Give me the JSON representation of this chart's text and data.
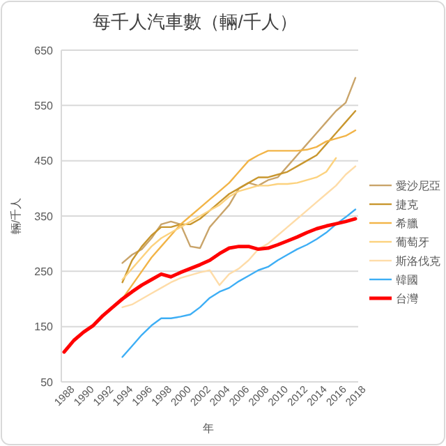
{
  "chart_data": {
    "type": "line",
    "title": "每千人汽車數（輛/千人）",
    "xlabel": "年",
    "ylabel": "輛/千人",
    "categories": [
      "1988",
      null,
      "1990",
      null,
      "1992",
      null,
      "1994",
      null,
      "1996",
      null,
      "1998",
      null,
      "2000",
      null,
      "2002",
      null,
      "2004",
      null,
      "2006",
      null,
      "2008",
      null,
      "2010",
      null,
      "2012",
      null,
      "2014",
      null,
      "2016",
      null,
      "2018"
    ],
    "ylim": [
      50,
      650
    ],
    "yticks": [
      50,
      150,
      250,
      350,
      450,
      550,
      650
    ],
    "grid": "y",
    "legend": "right",
    "series": [
      {
        "name": "愛沙尼亞",
        "color": "#c9a46a",
        "values": [
          null,
          null,
          null,
          null,
          null,
          null,
          265,
          280,
          290,
          310,
          335,
          340,
          335,
          295,
          292,
          330,
          350,
          370,
          400,
          410,
          405,
          415,
          420,
          440,
          460,
          480,
          500,
          520,
          540,
          555,
          600
        ]
      },
      {
        "name": "捷克",
        "color": "#c8962e",
        "values": [
          null,
          null,
          null,
          null,
          null,
          null,
          230,
          270,
          295,
          315,
          330,
          330,
          335,
          335,
          345,
          360,
          375,
          390,
          400,
          410,
          420,
          420,
          425,
          430,
          440,
          450,
          460,
          480,
          500,
          520,
          540
        ]
      },
      {
        "name": "希臘",
        "color": "#f2b447",
        "values": [
          null,
          null,
          null,
          null,
          null,
          null,
          200,
          225,
          250,
          275,
          295,
          315,
          335,
          350,
          365,
          380,
          395,
          410,
          430,
          450,
          460,
          468,
          468,
          468,
          468,
          470,
          475,
          485,
          490,
          495,
          505
        ]
      },
      {
        "name": "葡萄牙",
        "color": "#fcd27e",
        "values": [
          null,
          null,
          null,
          null,
          null,
          null,
          235,
          255,
          275,
          295,
          310,
          320,
          330,
          340,
          350,
          360,
          370,
          385,
          395,
          400,
          405,
          405,
          408,
          408,
          410,
          415,
          420,
          430,
          455,
          null,
          null
        ]
      },
      {
        "name": "斯洛伐克",
        "color": "#fedca8",
        "values": [
          null,
          null,
          null,
          null,
          null,
          null,
          185,
          190,
          200,
          210,
          220,
          230,
          238,
          243,
          248,
          252,
          225,
          245,
          255,
          270,
          290,
          300,
          315,
          330,
          345,
          360,
          375,
          390,
          405,
          425,
          440
        ]
      },
      {
        "name": "韓國",
        "color": "#3daef5",
        "values": [
          null,
          null,
          null,
          null,
          null,
          null,
          95,
          115,
          135,
          152,
          165,
          165,
          168,
          172,
          185,
          202,
          213,
          220,
          232,
          242,
          252,
          258,
          270,
          280,
          290,
          298,
          308,
          320,
          335,
          348,
          362
        ]
      },
      {
        "name": "台灣",
        "color": "#ff0000",
        "values": [
          104,
          125,
          140,
          152,
          170,
          185,
          200,
          213,
          225,
          235,
          245,
          240,
          248,
          255,
          262,
          270,
          282,
          292,
          295,
          295,
          290,
          292,
          298,
          305,
          312,
          320,
          327,
          332,
          336,
          340,
          345
        ]
      }
    ]
  }
}
